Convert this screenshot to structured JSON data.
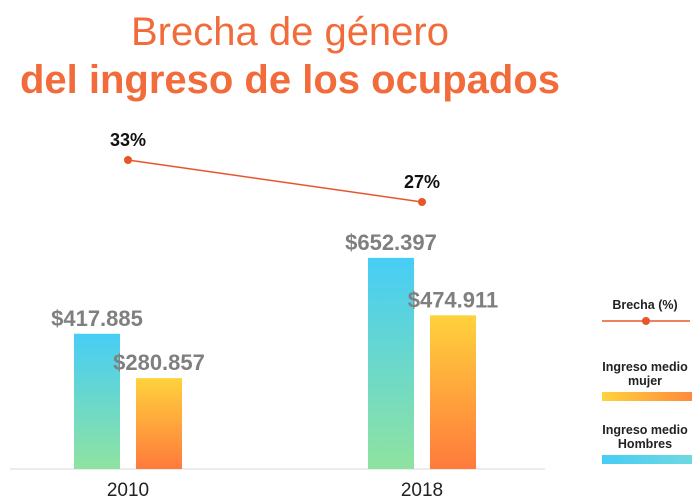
{
  "title": {
    "line1": "Brecha de género",
    "line2": "del ingreso de los ocupados"
  },
  "chart_data": {
    "type": "bar",
    "categories": [
      "2010",
      "2018"
    ],
    "series": [
      {
        "name": "Ingreso medio Hombres",
        "values": [
          417885,
          652397
        ],
        "labels": [
          "$417.885",
          "$652.397"
        ]
      },
      {
        "name": "Ingreso medio mujer",
        "values": [
          280857,
          474911
        ],
        "labels": [
          "$280.857",
          "$474.911"
        ]
      }
    ],
    "line_series": {
      "name": "Brecha (%)",
      "values": [
        33,
        27
      ],
      "labels": [
        "33%",
        "27%"
      ]
    },
    "ylim": [
      0,
      720000
    ],
    "colors": {
      "hombres_top": "#46cdf6",
      "hombres_bottom": "#8fe3a0",
      "mujer_top": "#ffd23c",
      "mujer_bottom": "#ff7a3c",
      "brecha": "#e8552b",
      "axis": "#d9d9d9",
      "title": "#f26b3a"
    }
  },
  "legend": [
    {
      "label": "Brecha (%)"
    },
    {
      "label": "Ingreso medio mujer"
    },
    {
      "label": "Ingreso medio Hombres"
    }
  ]
}
